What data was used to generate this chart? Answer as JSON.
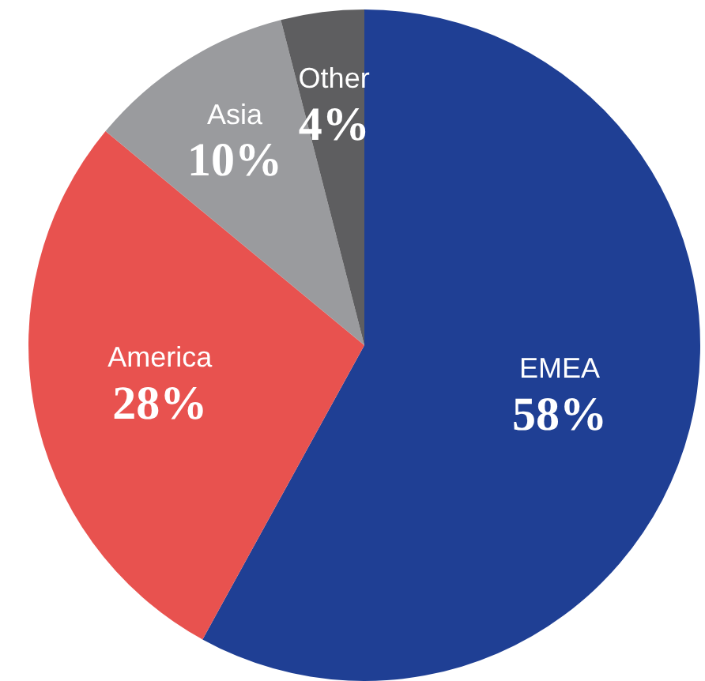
{
  "chart_data": {
    "type": "pie",
    "categories": [
      "EMEA",
      "America",
      "Asia",
      "Other"
    ],
    "values": [
      58,
      28,
      10,
      4
    ],
    "colors": [
      "#1f3f94",
      "#e8524f",
      "#9a9b9e",
      "#5e5e60"
    ],
    "value_labels": [
      "58%",
      "28%",
      "10%",
      "4%"
    ],
    "legend": false
  }
}
